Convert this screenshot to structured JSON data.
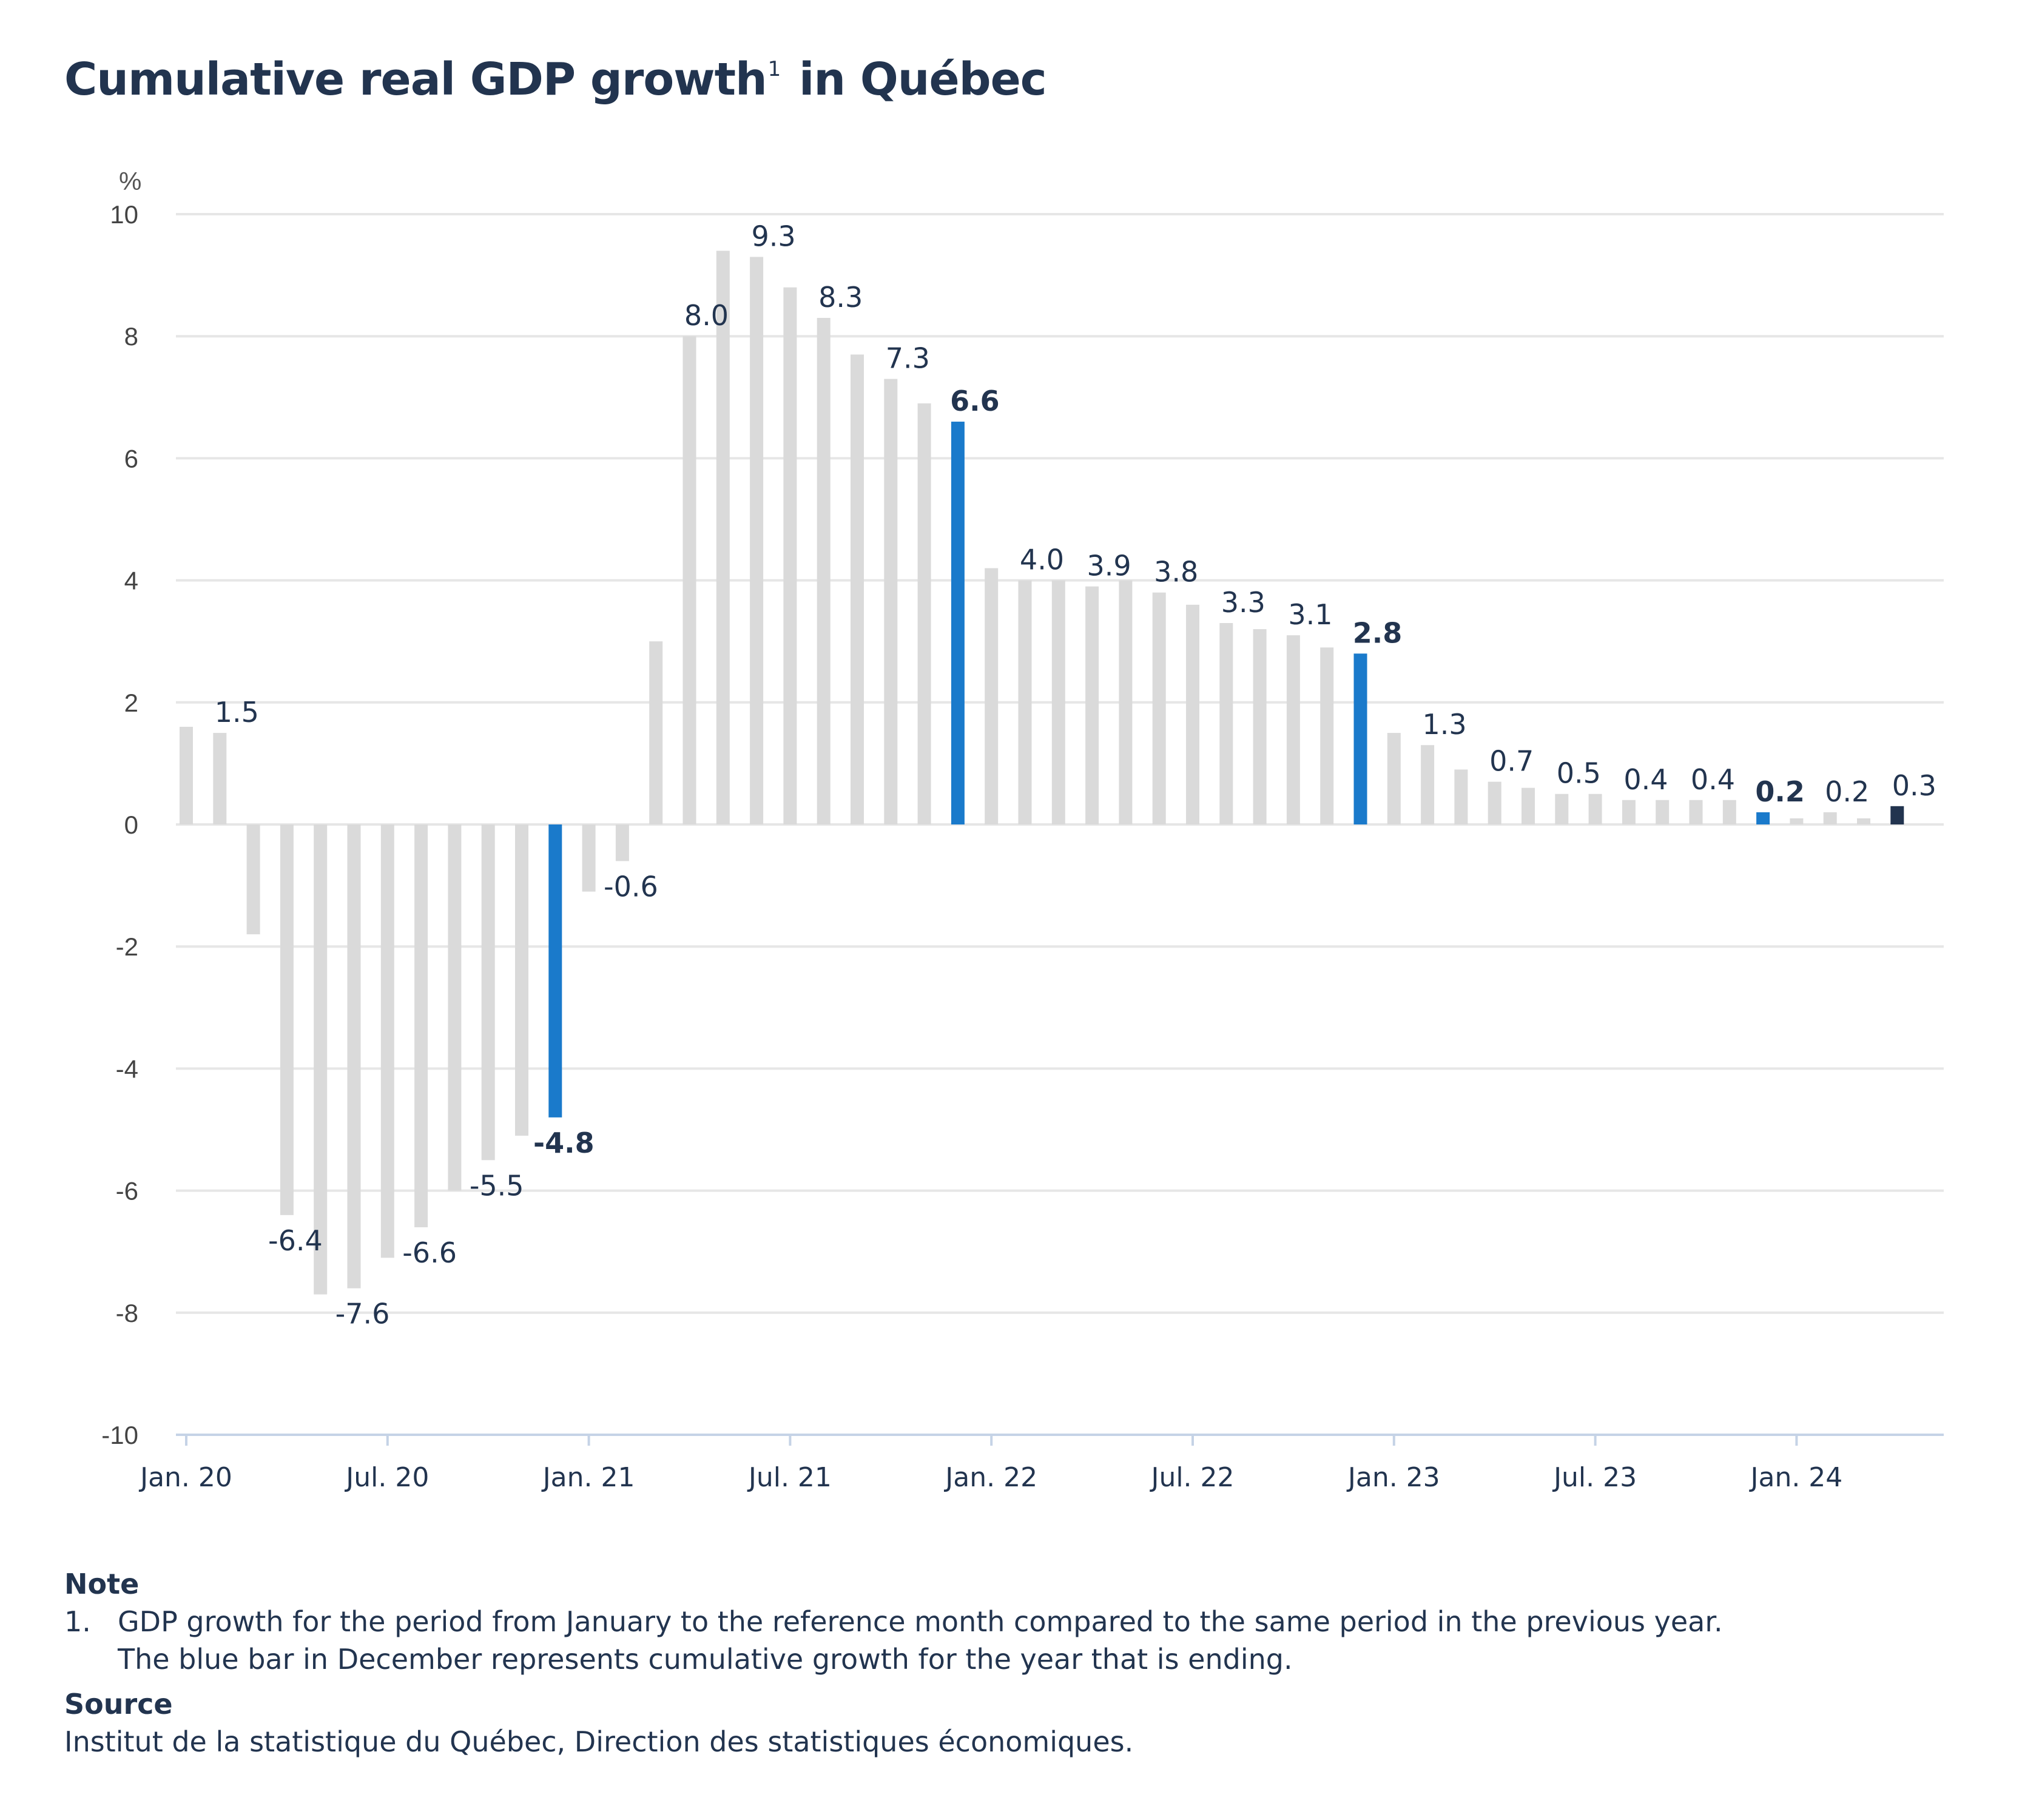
{
  "title": "Cumulative real GDP growth",
  "title_sup": "1",
  "title_suffix": " in Québec",
  "chart_data": {
    "type": "bar",
    "ylabel": "%",
    "ylim": [
      -10,
      10
    ],
    "yticks": [
      10,
      8,
      6,
      4,
      2,
      0,
      -2,
      -4,
      -6,
      -8,
      -10
    ],
    "grid": true,
    "categories": [
      "Jan. 20",
      "Feb. 20",
      "Mar. 20",
      "Apr. 20",
      "May 20",
      "Jun. 20",
      "Jul. 20",
      "Aug. 20",
      "Sep. 20",
      "Oct. 20",
      "Nov. 20",
      "Dec. 20",
      "Jan. 21",
      "Feb. 21",
      "Mar. 21",
      "Apr. 21",
      "May 21",
      "Jun. 21",
      "Jul. 21",
      "Aug. 21",
      "Sep. 21",
      "Oct. 21",
      "Nov. 21",
      "Dec. 21",
      "Jan. 22",
      "Feb. 22",
      "Mar. 22",
      "Apr. 22",
      "May 22",
      "Jun. 22",
      "Jul. 22",
      "Aug. 22",
      "Sep. 22",
      "Oct. 22",
      "Nov. 22",
      "Dec. 22",
      "Jan. 23",
      "Feb. 23",
      "Mar. 23",
      "Apr. 23",
      "May 23",
      "Jun. 23",
      "Jul. 23",
      "Aug. 23",
      "Sep. 23",
      "Oct. 23",
      "Nov. 23",
      "Dec. 23",
      "Jan. 24",
      "Feb. 24",
      "Mar. 24",
      "Apr. 24"
    ],
    "xtick_labels": [
      "Jan. 20",
      "Jul. 20",
      "Jan. 21",
      "Jul. 21",
      "Jan. 22",
      "Jul. 22",
      "Jan. 23",
      "Jul. 23",
      "Jan. 24"
    ],
    "values": [
      1.6,
      1.5,
      -1.8,
      -6.4,
      -7.7,
      -7.6,
      -7.1,
      -6.6,
      -6.0,
      -5.5,
      -5.1,
      -4.8,
      -1.1,
      -0.6,
      3.0,
      8.0,
      9.4,
      9.3,
      8.8,
      8.3,
      7.7,
      7.3,
      6.9,
      6.6,
      4.2,
      4.0,
      4.0,
      3.9,
      4.0,
      3.8,
      3.6,
      3.3,
      3.2,
      3.1,
      2.9,
      2.8,
      1.5,
      1.3,
      0.9,
      0.7,
      0.6,
      0.5,
      0.5,
      0.4,
      0.4,
      0.4,
      0.4,
      0.2,
      0.1,
      0.2,
      0.1,
      0.3
    ],
    "data_labels": {
      "1": "1.5",
      "3": "-6.4",
      "5": "-7.6",
      "7": "-6.6",
      "9": "-5.5",
      "11": "-4.8",
      "13": "-0.6",
      "15": "8.0",
      "17": "9.3",
      "19": "8.3",
      "21": "7.3",
      "23": "6.6",
      "25": "4.0",
      "27": "3.9",
      "29": "3.8",
      "31": "3.3",
      "33": "3.1",
      "35": "2.8",
      "37": "1.3",
      "39": "0.7",
      "41": "0.5",
      "43": "0.4",
      "45": "0.4",
      "47": "0.2",
      "49": "0.2",
      "51": "0.3"
    },
    "highlight_december": [
      11,
      23,
      35,
      47
    ],
    "latest": 51,
    "colors": {
      "bar": "#dadada",
      "december": "#1a7acb",
      "latest": "#22344f",
      "grid": "#e6e6e6",
      "text": "#22344f"
    }
  },
  "notes": {
    "note_heading": "Note",
    "note_num": "1.",
    "note_line1": "GDP growth for the period from January to the reference month compared to the same period in the previous year.",
    "note_line2": "The blue bar in December represents cumulative growth for the year that is ending.",
    "source_heading": "Source",
    "source_text": "Institut de la statistique du Québec, Direction des statistiques économiques."
  }
}
